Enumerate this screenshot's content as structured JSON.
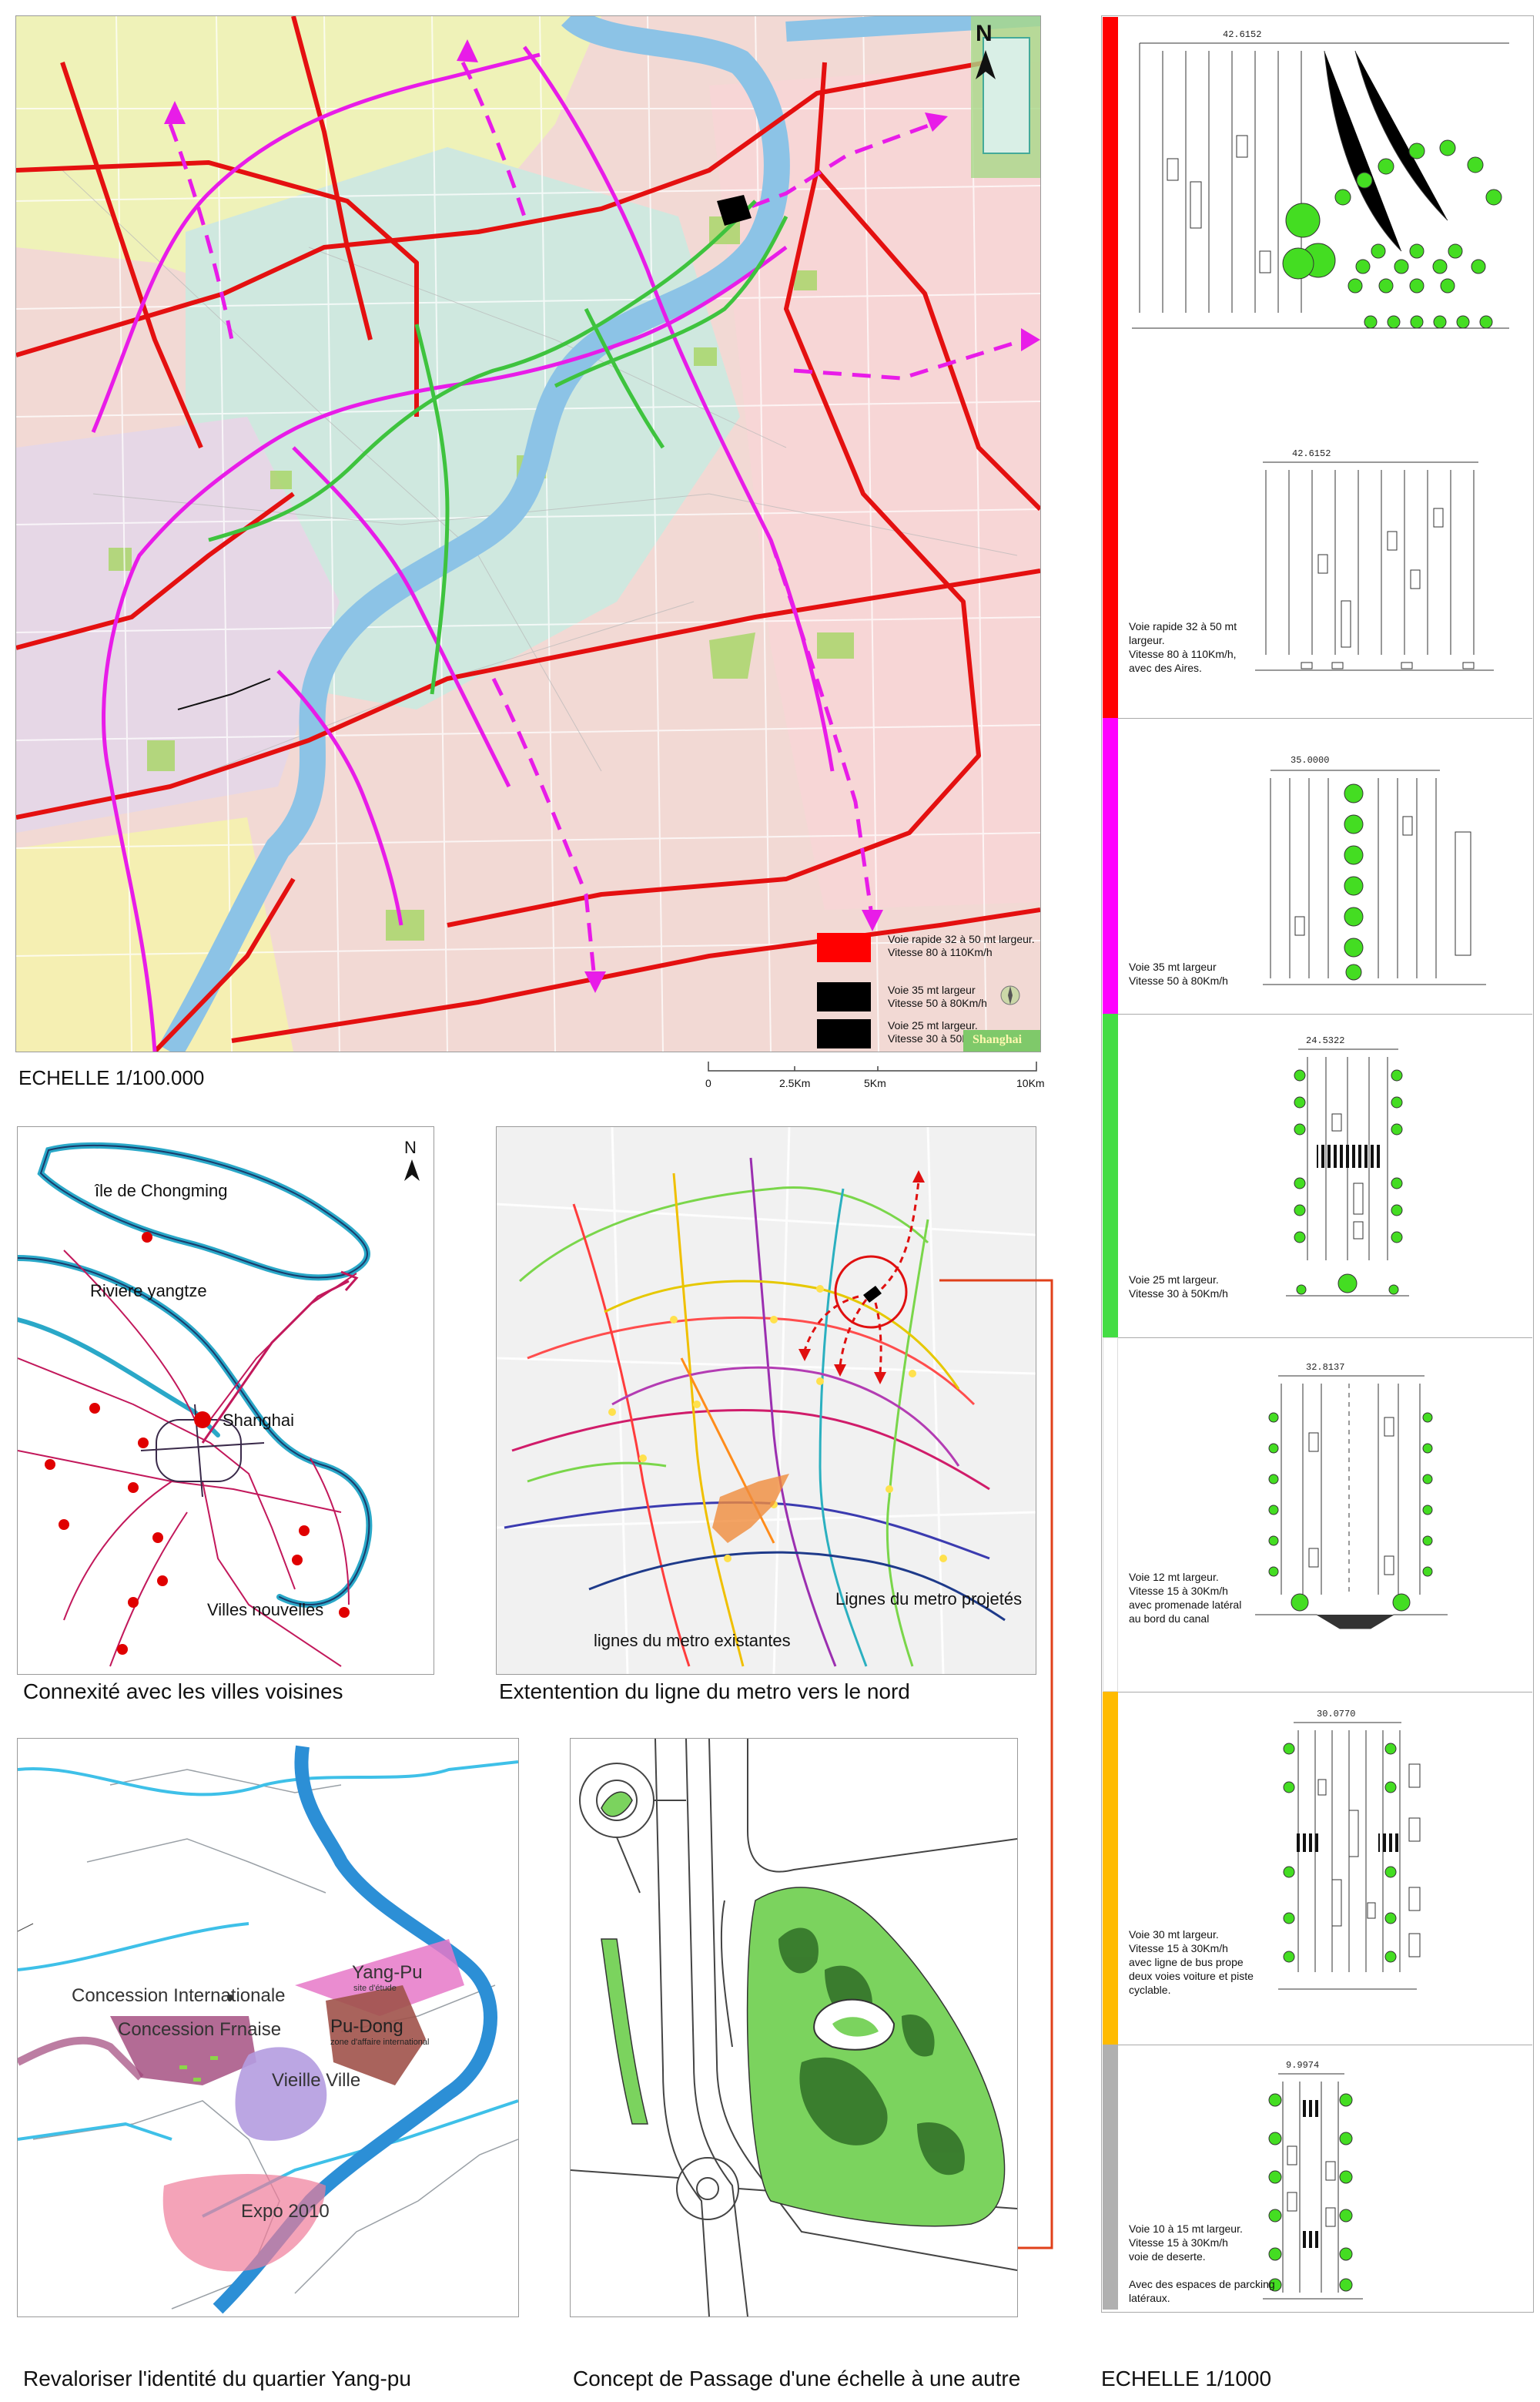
{
  "main_map": {
    "scale_label": "ECHELLE 1/100.000",
    "north": "N",
    "brand": "Shanghai",
    "scale_ticks": [
      "0",
      "2.5Km",
      "5Km",
      "10Km"
    ],
    "legend": [
      {
        "color": "#ff0000",
        "text": "Voie rapide 32 à 50 mt largeur. Vitesse 80 à 110Km/h"
      },
      {
        "color": "#000000",
        "text": "Voie 35 mt largeur Vitesse 50 à 80Km/h"
      },
      {
        "color": "#000000",
        "text": "Voie 25 mt largeur. Vitesse 30 à 50Km/h"
      }
    ]
  },
  "connexity_map": {
    "north": "N",
    "labels": {
      "island": "île de Chongming",
      "river": "Riviere yangtze",
      "city": "Shanghai",
      "new_towns": "Villes nouvelles"
    },
    "caption": "Connexité avec les villes voisines"
  },
  "metro_map": {
    "labels": {
      "projected": "Lignes du metro projetés",
      "existing": "lignes du metro existantes"
    },
    "caption": "Extentention du ligne du metro vers le nord"
  },
  "identity_map": {
    "labels": {
      "concession_int": "Concession Internationale",
      "concession_fr": "Concession Frnaise",
      "yangpu": "Yang-Pu",
      "yangpu_sub": "site d'étude",
      "pudong": "Pu-Dong",
      "pudong_sub": "zone d'affaire international",
      "old_town": "Vieille Ville",
      "expo": "Expo 2010"
    },
    "caption": "Revaloriser l'identité du quartier Yang-pu"
  },
  "concept": {
    "caption": "Concept de Passage d'une échelle à une autre"
  },
  "sections": {
    "scale_label": "ECHELLE 1/1000",
    "items": [
      {
        "color": "#ff0000",
        "dimension": "42.6152",
        "text": [
          "Voie rapide 32 à 50 mt",
          "largeur.",
          "Vitesse 80 à 110Km/h,",
          "avec des Aires."
        ]
      },
      {
        "color": "#ff00ff",
        "dimension": "35.0000",
        "text": [
          "Voie 35 mt largeur",
          "Vitesse 50 à 80Km/h"
        ]
      },
      {
        "color": "#44dd44",
        "dimension": "24.5322",
        "text": [
          "Voie 25 mt largeur.",
          "Vitesse 30 à 50Km/h"
        ]
      },
      {
        "color": "#ffffff",
        "dimension": "32.8137",
        "text": [
          "Voie 12 mt largeur.",
          "Vitesse 15 à 30Km/h",
          "avec promenade latéral",
          "au bord du canal"
        ]
      },
      {
        "color": "#ffbb00",
        "dimension": "30.0770",
        "text": [
          "Voie 30 mt largeur.",
          "Vitesse 15 à 30Km/h",
          "avec ligne de bus prope",
          "deux voies voiture et piste",
          "cyclable."
        ]
      },
      {
        "color": "#b0b0b0",
        "dimension": "9.9974",
        "text": [
          "Voie 10 à 15 mt largeur.",
          "Vitesse 15 à 30Km/h",
          "voie de deserte.",
          "",
          "Avec des espaces de parcking",
          "latéraux."
        ]
      }
    ]
  }
}
